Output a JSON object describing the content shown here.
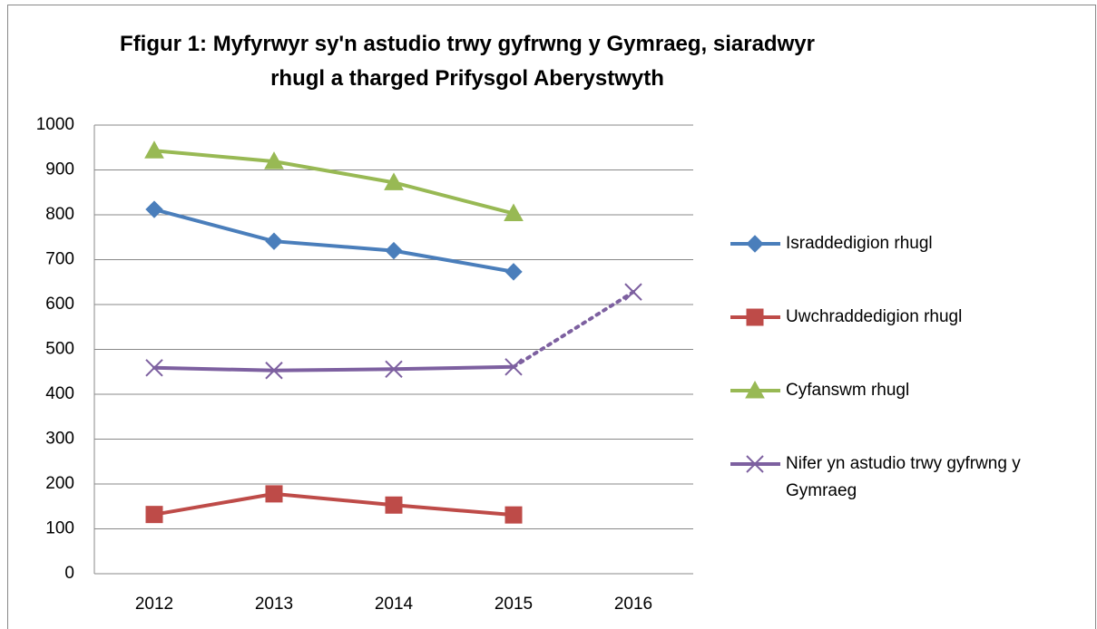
{
  "chart_data": {
    "type": "line",
    "title": "Ffigur 1: Myfyrwyr sy'n astudio trwy gyfrwng y Gymraeg, siaradwyr rhugl a tharged Prifysgol Aberystwyth",
    "categories": [
      "2012",
      "2013",
      "2014",
      "2015",
      "2016"
    ],
    "series": [
      {
        "name": "Israddedigion rhugl",
        "color": "#4a7ebb",
        "marker": "diamond",
        "values": [
          812,
          741,
          720,
          673,
          null
        ]
      },
      {
        "name": "Uwchraddedigion rhugl",
        "color": "#be4b48",
        "marker": "square",
        "values": [
          132,
          178,
          153,
          131,
          null
        ]
      },
      {
        "name": "Cyfanswm rhugl",
        "color": "#98b954",
        "marker": "triangle",
        "values": [
          943,
          919,
          872,
          803,
          null
        ]
      },
      {
        "name": "Nifer yn astudio trwy gyfrwng y Gymraeg",
        "color": "#7d60a0",
        "marker": "x",
        "values": [
          459,
          453,
          456,
          461,
          628
        ],
        "dotted_from": 3
      }
    ],
    "ylim": [
      0,
      1000
    ],
    "yticks": [
      0,
      100,
      200,
      300,
      400,
      500,
      600,
      700,
      800,
      900,
      1000
    ],
    "grid": true,
    "legend": "right"
  }
}
